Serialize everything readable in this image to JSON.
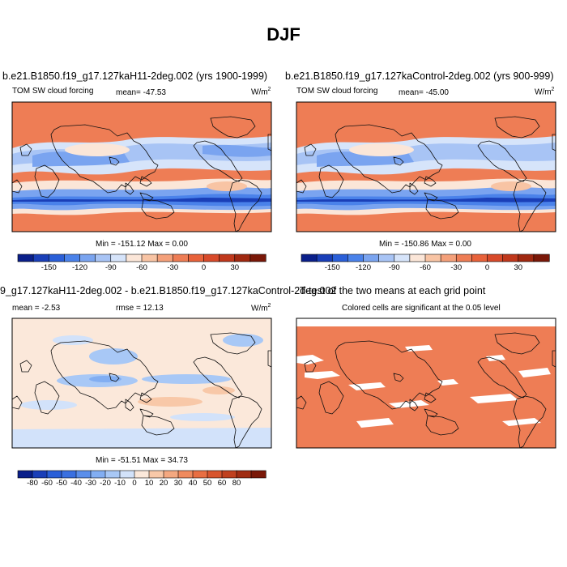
{
  "title": "DJF",
  "panels": [
    {
      "title": "b.e21.B1850.f19_g17.127kaH11-2deg.002 (yrs 1900-1999)",
      "left_label": "TOM SW cloud forcing",
      "center_label": "mean= -47.53",
      "units": "W/m",
      "units_exp": "2",
      "minmax": "Min = -151.12 Max =   0.00"
    },
    {
      "title": "b.e21.B1850.f19_g17.127kaControl-2deg.002 (yrs 900-999)",
      "left_label": "TOM SW cloud forcing",
      "center_label": "mean= -45.00",
      "units": "W/m",
      "units_exp": "2",
      "minmax": "Min = -150.86 Max =   0.00"
    },
    {
      "title": "9_g17.127kaH11-2deg.002 - b.e21.B1850.f19_g17.127kaControl-2deg.002",
      "left_label": "mean = -2.53",
      "center_label": "rmse =  12.13",
      "units": "W/m",
      "units_exp": "2",
      "minmax": "Min = -51.51 Max =  34.73"
    },
    {
      "title": "T-test of the two means at each grid point",
      "subtitle": "Colored cells are significant at the 0.05 level"
    }
  ],
  "colorbars": [
    {
      "colors": [
        "#0a1f8a",
        "#1a3fb8",
        "#2a5fd8",
        "#4a82ea",
        "#7aa4f0",
        "#a8c4f5",
        "#d6e4fa",
        "#fbe6d8",
        "#f8c4a4",
        "#f4a07a",
        "#ee7d55",
        "#e8623a",
        "#d84a2a",
        "#c0381c",
        "#a02810",
        "#7a1808"
      ],
      "labels": [
        "-150",
        "-120",
        "-90",
        "-60",
        "-30",
        "0",
        "30"
      ],
      "label_bounds": [
        2,
        4,
        6,
        8,
        10,
        12,
        14
      ]
    },
    {
      "colors": [
        "#0a1f8a",
        "#1a3fb8",
        "#2a5fd8",
        "#4a82ea",
        "#7aa4f0",
        "#a8c4f5",
        "#d6e4fa",
        "#fbe6d8",
        "#f8c4a4",
        "#f4a07a",
        "#ee7d55",
        "#e8623a",
        "#d84a2a",
        "#c0381c",
        "#a02810",
        "#7a1808"
      ],
      "labels": [
        "-150",
        "-120",
        "-90",
        "-60",
        "-30",
        "0",
        "30"
      ],
      "label_bounds": [
        2,
        4,
        6,
        8,
        10,
        12,
        14
      ]
    },
    {
      "colors": [
        "#0a1f8a",
        "#1a3fb8",
        "#2a5fd8",
        "#3a70e0",
        "#5a8eea",
        "#82aef2",
        "#a8c8f6",
        "#d2e2fa",
        "#fbe8da",
        "#f8c8a8",
        "#f4a880",
        "#ef8a5e",
        "#e86e42",
        "#d8552e",
        "#c0401e",
        "#a02c12",
        "#7a1808"
      ],
      "labels": [
        "-80",
        "-60",
        "-50",
        "-40",
        "-30",
        "-20",
        "-10",
        "0",
        "10",
        "20",
        "30",
        "40",
        "50",
        "60",
        "80"
      ],
      "label_bounds": [
        1,
        2,
        3,
        4,
        5,
        6,
        7,
        8,
        9,
        10,
        11,
        12,
        13,
        14,
        15,
        16
      ]
    }
  ],
  "chart_data": [
    {
      "type": "heatmap",
      "title": "b.e21.B1850.f19_g17.127kaH11-2deg.002 (yrs 1900-1999)",
      "variable": "TOM SW cloud forcing",
      "units": "W/m2",
      "mean": -47.53,
      "min": -151.12,
      "max": 0.0,
      "colorbar_ticks": [
        -150,
        -120,
        -90,
        -60,
        -30,
        0,
        30
      ]
    },
    {
      "type": "heatmap",
      "title": "b.e21.B1850.f19_g17.127kaControl-2deg.002 (yrs 900-999)",
      "variable": "TOM SW cloud forcing",
      "units": "W/m2",
      "mean": -45.0,
      "min": -150.86,
      "max": 0.0,
      "colorbar_ticks": [
        -150,
        -120,
        -90,
        -60,
        -30,
        0,
        30
      ]
    },
    {
      "type": "heatmap",
      "title": "9_g17.127kaH11-2deg.002 - b.e21.B1850.f19_g17.127kaControl-2deg.002",
      "units": "W/m2",
      "mean": -2.53,
      "rmse": 12.13,
      "min": -51.51,
      "max": 34.73,
      "colorbar_ticks": [
        -80,
        -60,
        -50,
        -40,
        -30,
        -20,
        -10,
        0,
        10,
        20,
        30,
        40,
        50,
        60,
        80
      ]
    },
    {
      "type": "heatmap",
      "title": "T-test of the two means at each grid point",
      "subtitle": "Colored cells are significant at the 0.05 level"
    }
  ]
}
